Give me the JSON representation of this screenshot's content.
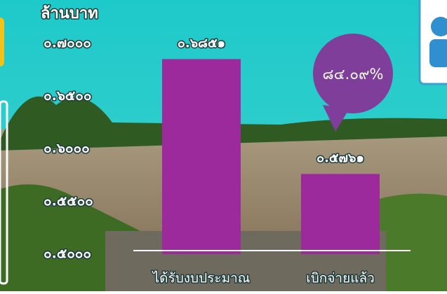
{
  "chart_data": {
    "type": "bar",
    "y_label": "ล้านบาท",
    "categories": [
      "ได้รับงบประมาณ",
      "เบิกจ่ายแล้ว"
    ],
    "values": [
      0.6851,
      0.5761
    ],
    "value_labels": [
      "๐.๖๘๕๑",
      "๐.๕๗๖๑"
    ],
    "color": "#9c2a9c",
    "ylim": [
      0.5,
      0.7
    ],
    "yticks": [
      {
        "value": 0.5,
        "label": "๐.๕๐๐๐"
      },
      {
        "value": 0.55,
        "label": "๐.๕๕๐๐"
      },
      {
        "value": 0.6,
        "label": "๐.๖๐๐๐"
      },
      {
        "value": 0.65,
        "label": "๐.๖๕๐๐"
      },
      {
        "value": 0.7,
        "label": "๐.๗๐๐๐"
      }
    ],
    "annotation": "๘๔.๐๙%"
  }
}
